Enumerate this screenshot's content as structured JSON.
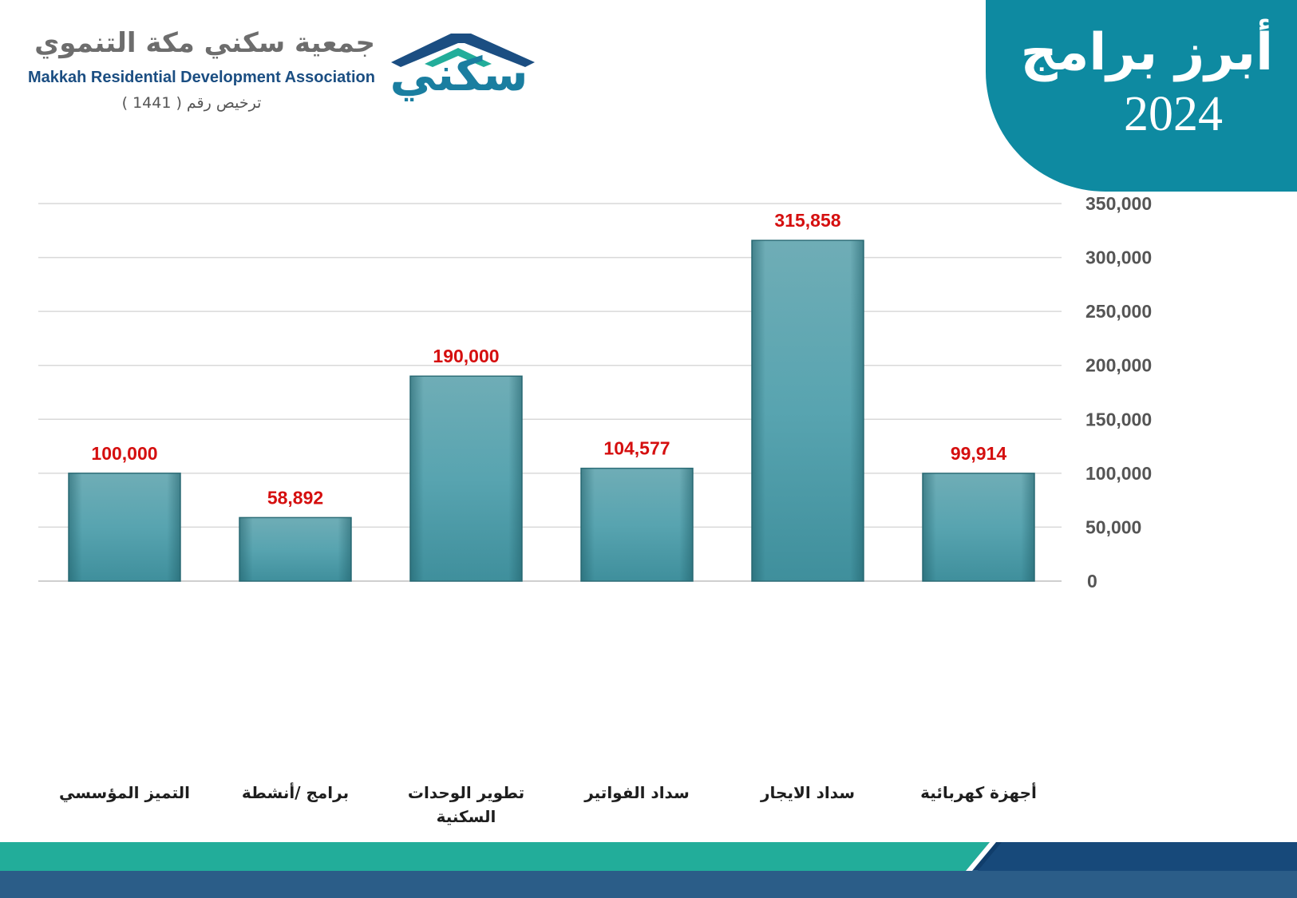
{
  "header": {
    "title_line1": "أبرز برامج",
    "title_line2": "2024",
    "org_name_ar": "جمعية سكني مكة التنموي",
    "org_name_en": "Makkah Residential Development Association",
    "license_text": "ترخيص رقم ( 1441 )",
    "logo_text": "سكني",
    "colors": {
      "title_block": "#0e8aa1",
      "logo_dark": "#1b4e82",
      "logo_teal": "#1a7ea0"
    }
  },
  "chart_data": {
    "type": "bar",
    "categories": [
      "التميز المؤسسي",
      "برامج /أنشطة",
      "تطوير الوحدات السكنية",
      "سداد الفواتير",
      "سداد الايجار",
      "أجهزة كهربائية"
    ],
    "values": [
      100000,
      58892,
      190000,
      104577,
      315858,
      99914
    ],
    "value_labels": [
      "100,000",
      "58,892",
      "190,000",
      "104,577",
      "315,858",
      "99,914"
    ],
    "ylim": [
      0,
      350000
    ],
    "y_ticks": [
      "0",
      "50,000",
      "100,000",
      "150,000",
      "200,000",
      "250,000",
      "300,000",
      "350,000"
    ],
    "y_axis_side": "right",
    "grid": true,
    "colors": {
      "bar": "#4fa1ad",
      "value_label": "#d50f0f",
      "grid": "#d9d9d9"
    }
  },
  "footer": {
    "colors": {
      "teal": "#22ad9a",
      "navy": "#103d6b"
    }
  }
}
